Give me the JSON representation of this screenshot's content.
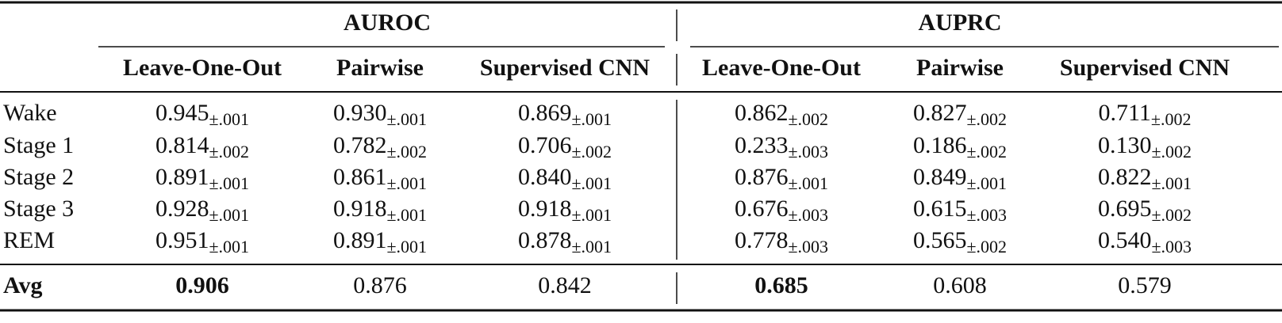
{
  "table": {
    "corner": null,
    "groups": [
      {
        "title": "AUROC",
        "columns": [
          "Leave-One-Out",
          "Pairwise",
          "Supervised CNN"
        ]
      },
      {
        "title": "AUPRC",
        "columns": [
          "Leave-One-Out",
          "Pairwise",
          "Supervised CNN"
        ]
      }
    ],
    "rows": [
      {
        "label": "Wake",
        "cells": [
          {
            "value": "0.945",
            "err": "±.001"
          },
          {
            "value": "0.930",
            "err": "±.001"
          },
          {
            "value": "0.869",
            "err": "±.001"
          },
          {
            "value": "0.862",
            "err": "±.002"
          },
          {
            "value": "0.827",
            "err": "±.002"
          },
          {
            "value": "0.711",
            "err": "±.002"
          }
        ]
      },
      {
        "label": "Stage 1",
        "cells": [
          {
            "value": "0.814",
            "err": "±.002"
          },
          {
            "value": "0.782",
            "err": "±.002"
          },
          {
            "value": "0.706",
            "err": "±.002"
          },
          {
            "value": "0.233",
            "err": "±.003"
          },
          {
            "value": "0.186",
            "err": "±.002"
          },
          {
            "value": "0.130",
            "err": "±.002"
          }
        ]
      },
      {
        "label": "Stage 2",
        "cells": [
          {
            "value": "0.891",
            "err": "±.001"
          },
          {
            "value": "0.861",
            "err": "±.001"
          },
          {
            "value": "0.840",
            "err": "±.001"
          },
          {
            "value": "0.876",
            "err": "±.001"
          },
          {
            "value": "0.849",
            "err": "±.001"
          },
          {
            "value": "0.822",
            "err": "±.001"
          }
        ]
      },
      {
        "label": "Stage 3",
        "cells": [
          {
            "value": "0.928",
            "err": "±.001"
          },
          {
            "value": "0.918",
            "err": "±.001"
          },
          {
            "value": "0.918",
            "err": "±.001"
          },
          {
            "value": "0.676",
            "err": "±.003"
          },
          {
            "value": "0.615",
            "err": "±.003"
          },
          {
            "value": "0.695",
            "err": "±.002"
          }
        ]
      },
      {
        "label": "REM",
        "cells": [
          {
            "value": "0.951",
            "err": "±.001"
          },
          {
            "value": "0.891",
            "err": "±.001"
          },
          {
            "value": "0.878",
            "err": "±.001"
          },
          {
            "value": "0.778",
            "err": "±.003"
          },
          {
            "value": "0.565",
            "err": "±.002"
          },
          {
            "value": "0.540",
            "err": "±.003"
          }
        ]
      }
    ],
    "avg": {
      "label": "Avg",
      "cells": [
        "0.906",
        "0.876",
        "0.842",
        "0.685",
        "0.608",
        "0.579"
      ]
    }
  }
}
